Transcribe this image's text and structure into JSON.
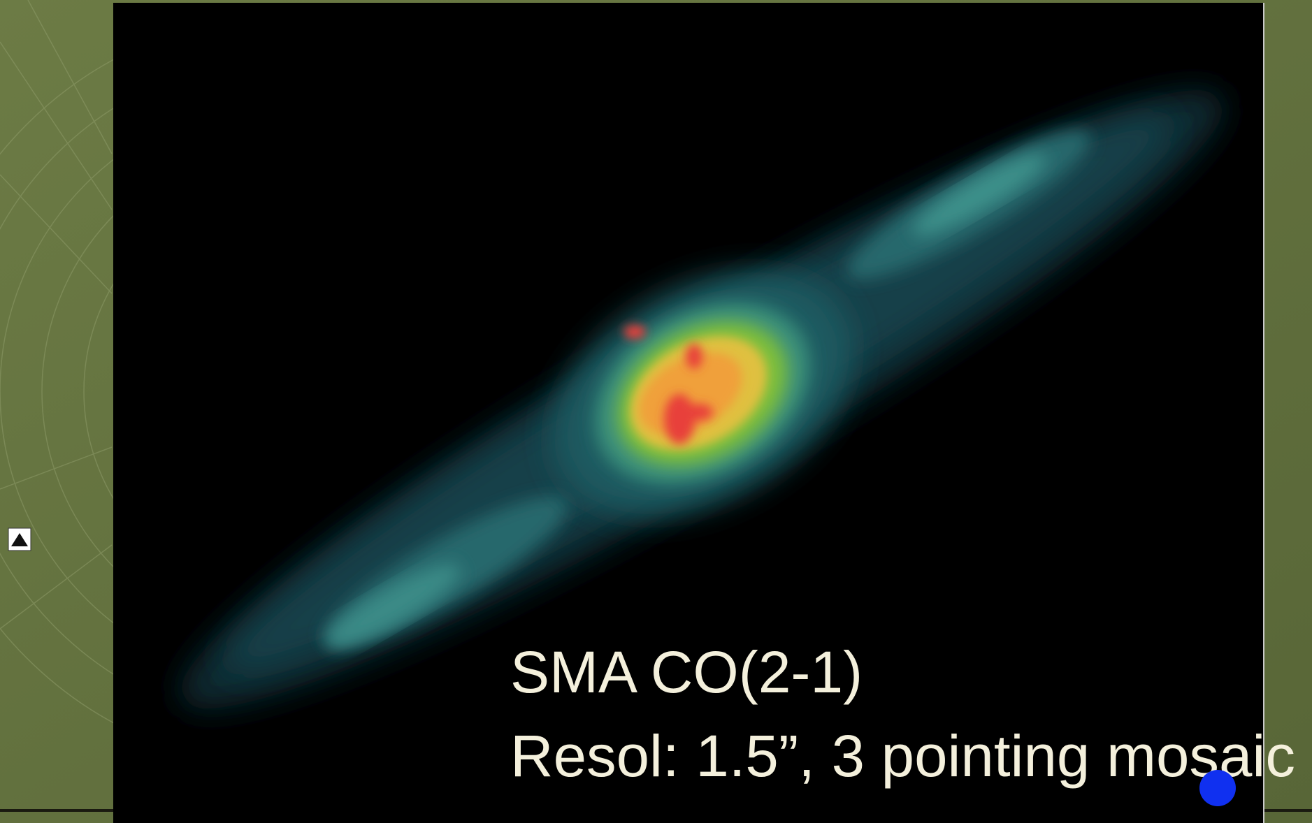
{
  "slide": {
    "lines": [
      "SMA CO(2-1)",
      "Resol: 1.5”, 3 pointing mosaic"
    ]
  }
}
